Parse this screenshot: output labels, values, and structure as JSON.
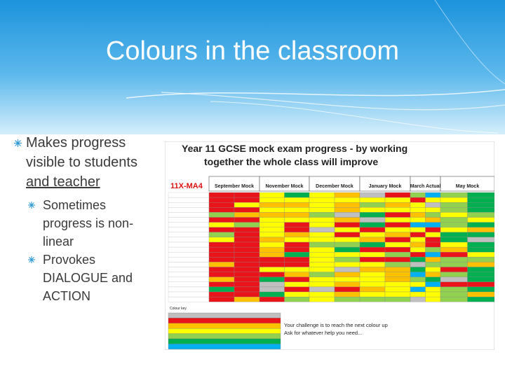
{
  "slide": {
    "title": "Colours in the classroom",
    "bullets": [
      {
        "text": "Makes progress visible to students",
        "underlined": "and teacher",
        "sub_bullets": [
          "Sometimes progress is non-linear",
          "Provokes DIALOGUE and ACTION"
        ]
      }
    ],
    "sheet": {
      "heading": [
        "Year 11 GCSE mock exam progress - by working",
        "together the whole class will improve"
      ],
      "class_code": "11X-MA4",
      "columns": [
        "September Mock",
        "November Mock",
        "December Mock",
        "January Mock",
        "March Actual",
        "May Mock"
      ],
      "legend_title": "Colour key",
      "challenge": [
        "Your challenge is to reach the next colour up",
        "Ask for whatever help you need..."
      ]
    }
  }
}
